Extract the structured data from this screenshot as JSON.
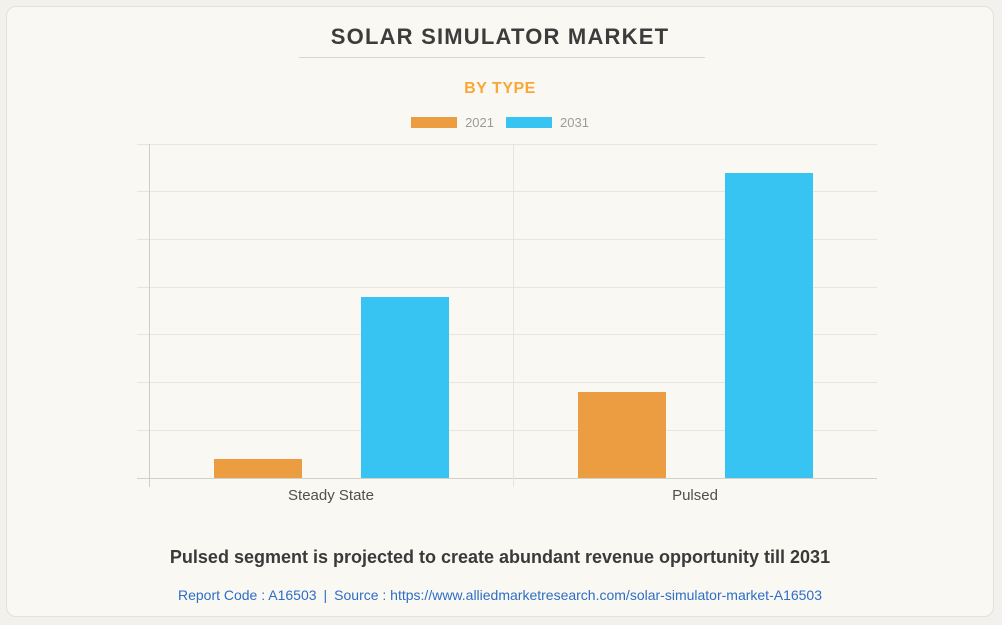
{
  "header": {
    "title": "SOLAR SIMULATOR MARKET",
    "subtitle": "BY TYPE"
  },
  "chart_data": {
    "type": "bar",
    "title": "SOLAR SIMULATOR MARKET",
    "subtitle": "BY TYPE",
    "categories": [
      "Steady State",
      "Pulsed"
    ],
    "series": [
      {
        "name": "2021",
        "color": "#ec9c41",
        "values": [
          0.4,
          1.8
        ]
      },
      {
        "name": "2031",
        "color": "#38c4f3",
        "values": [
          3.8,
          6.4
        ]
      }
    ],
    "xlabel": "",
    "ylabel": "",
    "ylim": [
      0,
      7
    ],
    "gridline_step": 1,
    "grid": true,
    "y_tick_labels_visible": false,
    "legend_position": "top",
    "value_note": "Y axis is unlabeled in source image; values are estimated in gridline units (max 7 gridline intervals)"
  },
  "footer": {
    "caption": "Pulsed segment is projected to create abundant revenue opportunity till 2031",
    "report_code": "Report Code : A16503",
    "separator": "|",
    "source": "Source : https://www.alliedmarketresearch.com/solar-simulator-market-A16503"
  },
  "colors": {
    "page_background": "#f2f1ee",
    "card_background": "#faf8f2",
    "card_border": "#e3e1db",
    "title_text": "#3c3c3c",
    "subtitle_text": "#faa738",
    "legend_label": "#9c9c9c",
    "gridline": "#e8e5de",
    "axis_line": "#cfcdc6",
    "category_label": "#4f4f4f",
    "caption_text": "#3a3a3a",
    "source_text": "#2d6ec6",
    "bar_2021": "#ec9c41",
    "bar_2031": "#38c4f3"
  }
}
